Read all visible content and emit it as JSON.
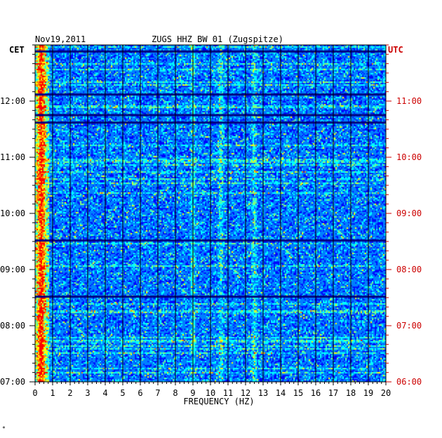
{
  "chart_data": {
    "type": "heatmap",
    "date": "Nov19,2011",
    "title": "ZUGS HHZ BW 01 (Zugspitze)",
    "left_timezone": "CET",
    "right_timezone": "UTC",
    "xlabel": "FREQUENCY (HZ)",
    "xlim": [
      0,
      20
    ],
    "x_ticks": [
      "0",
      "1",
      "2",
      "3",
      "4",
      "5",
      "6",
      "7",
      "8",
      "9",
      "10",
      "11",
      "12",
      "13",
      "14",
      "15",
      "16",
      "17",
      "18",
      "19",
      "20"
    ],
    "left_time_ticks": [
      "12:00",
      "11:00",
      "10:00",
      "09:00",
      "08:00",
      "07:00"
    ],
    "right_time_ticks": [
      "11:00",
      "10:00",
      "09:00",
      "08:00",
      "07:00",
      "06:00"
    ],
    "time_range_cet": [
      "07:00",
      "13:00"
    ],
    "colormap": [
      "#00007f",
      "#0000ff",
      "#0080ff",
      "#00ffff",
      "#80ff80",
      "#ffff00",
      "#ff8000",
      "#ff0000"
    ],
    "left_label_color": "#000000",
    "right_label_color": "#cc0000",
    "prominent_frequencies_hz": [
      9.0,
      10.6,
      12.5
    ],
    "dark_time_bands_cet": [
      "12:53",
      "12:07",
      "11:45",
      "11:37",
      "09:31",
      "08:31"
    ]
  },
  "footer_mark": "*"
}
